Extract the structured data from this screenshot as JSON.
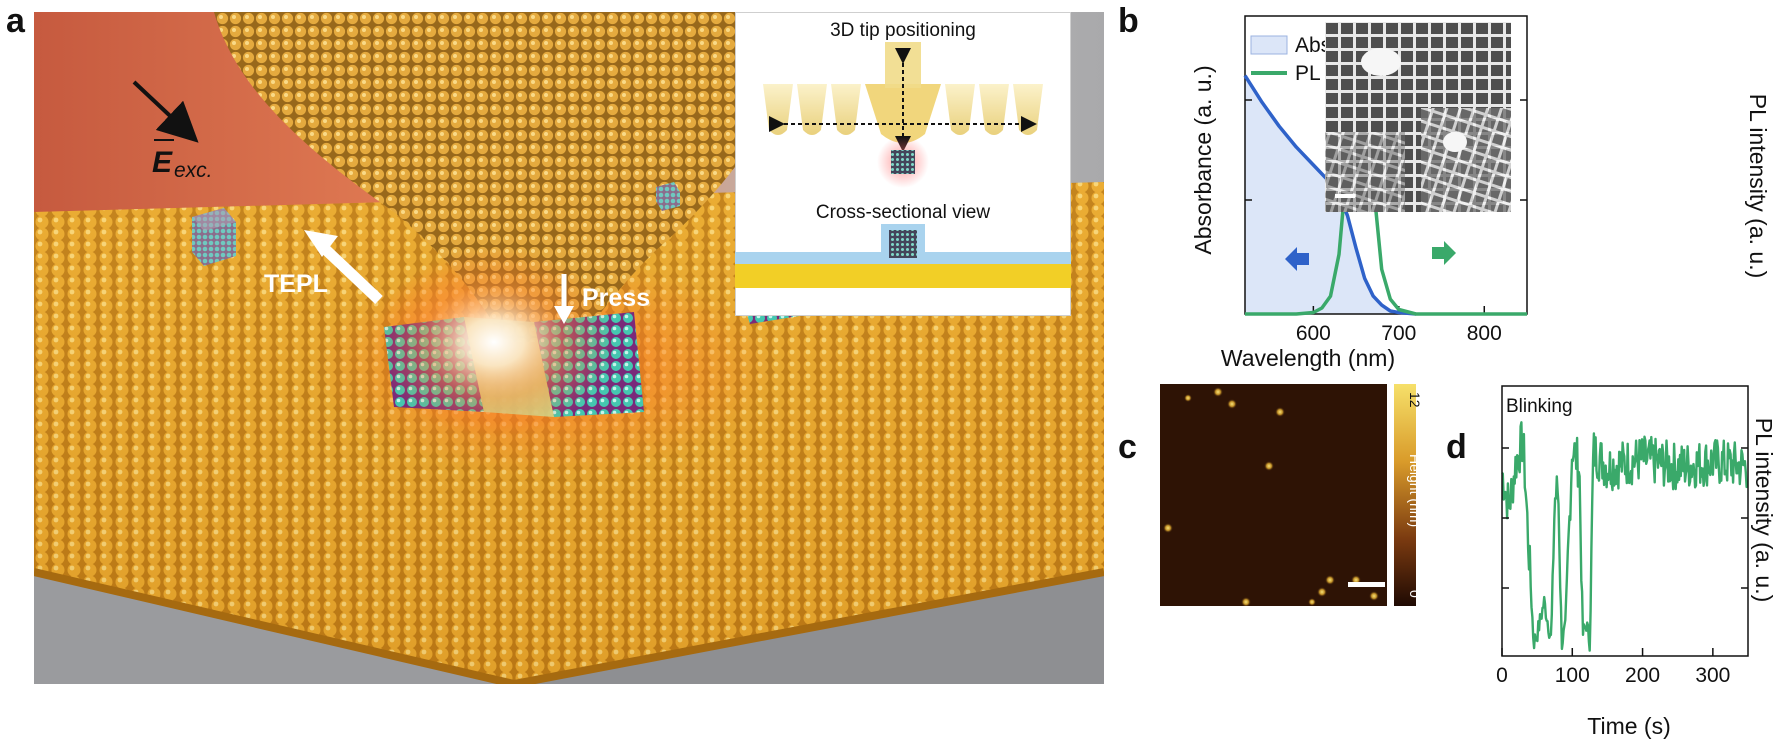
{
  "figure": {
    "panels": [
      {
        "letter": "a"
      },
      {
        "letter": "b"
      },
      {
        "letter": "c"
      },
      {
        "letter": "d"
      }
    ]
  },
  "panel_a": {
    "field_label": "E",
    "field_subscript": "exc.",
    "tepl_label": "TEPL",
    "press_label": "Press",
    "inset_title_top": "3D tip positioning",
    "inset_title_bottom": "Cross-sectional view"
  },
  "panel_c": {
    "colorbar_label": "Height (nm)",
    "colorbar_max": "12",
    "colorbar_min": "0"
  },
  "chart_data": [
    {
      "type": "line",
      "panel": "b",
      "xlabel": "Wavelength (nm)",
      "ylabel": "Absorbance (a. u.)",
      "ylabel_right": "PL intensity (a. u.)",
      "xlim": [
        520,
        850
      ],
      "xticks": [
        600,
        700,
        800
      ],
      "legend": "top-left",
      "series": [
        {
          "name": "Absorption",
          "color": "#2f62c9",
          "fill": "#dce6f8",
          "x": [
            520,
            540,
            560,
            580,
            600,
            620,
            630,
            640,
            650,
            660,
            670,
            680,
            690,
            700,
            720
          ],
          "y": [
            0.8,
            0.71,
            0.63,
            0.56,
            0.5,
            0.44,
            0.4,
            0.33,
            0.22,
            0.12,
            0.06,
            0.03,
            0.01,
            0.005,
            0.0
          ]
        },
        {
          "name": "PL",
          "color": "#3aa96a",
          "x": [
            520,
            580,
            600,
            610,
            620,
            630,
            640,
            645,
            650,
            653,
            656,
            660,
            665,
            670,
            680,
            690,
            700,
            720,
            760,
            850
          ],
          "y": [
            0.0,
            0.0,
            0.005,
            0.02,
            0.06,
            0.2,
            0.52,
            0.72,
            0.89,
            0.93,
            0.92,
            0.84,
            0.65,
            0.44,
            0.15,
            0.05,
            0.015,
            0.0,
            0.0,
            0.0
          ]
        }
      ]
    },
    {
      "type": "line",
      "panel": "d",
      "title": "Blinking",
      "xlabel": "Time (s)",
      "ylabel": "PL intensity (a. u.)",
      "xlim": [
        0,
        350
      ],
      "xticks": [
        0,
        100,
        200,
        300
      ],
      "color": "#3aa96a",
      "series": [
        {
          "x": [
            0,
            10,
            20,
            30,
            40,
            45,
            50,
            60,
            70,
            75,
            80,
            85,
            90,
            100,
            110,
            115,
            120,
            125,
            130,
            150,
            200,
            250,
            300,
            350
          ],
          "y": [
            0.68,
            0.55,
            0.72,
            0.8,
            0.3,
            0.05,
            0.08,
            0.2,
            0.06,
            0.58,
            0.62,
            0.05,
            0.1,
            0.78,
            0.7,
            0.08,
            0.12,
            0.05,
            0.76,
            0.7,
            0.73,
            0.7,
            0.72,
            0.7
          ]
        }
      ]
    }
  ]
}
